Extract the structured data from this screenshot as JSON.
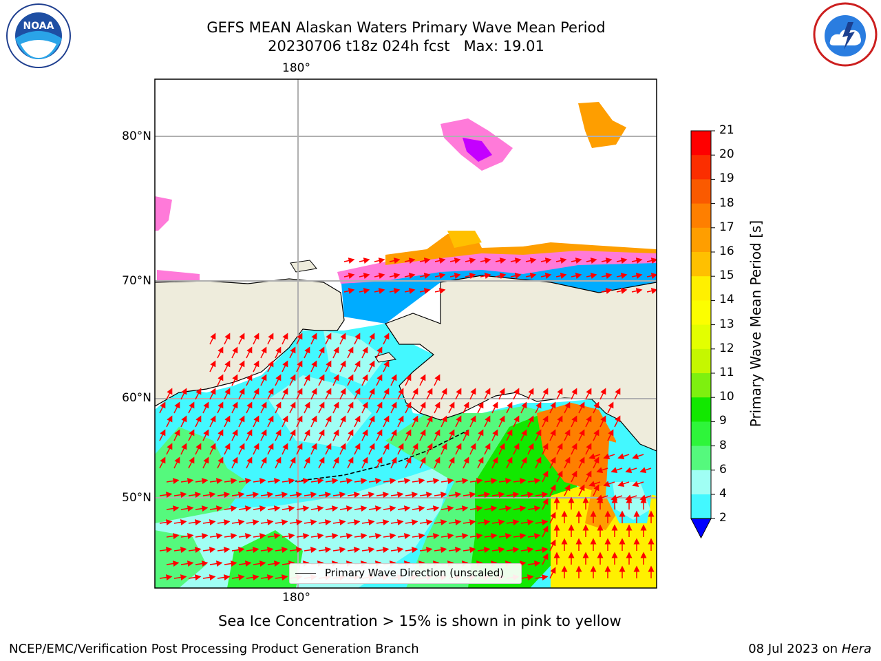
{
  "header": {
    "title_line1": "GEFS MEAN Alaskan Waters Primary Wave Mean Period",
    "title_line2": "20230706 t18z 024h fcst   Max: 19.01"
  },
  "logos": {
    "left": "NOAA",
    "right": "NATIONAL WEATHER SERVICE"
  },
  "map": {
    "lon_label_top": "180°",
    "lon_label_bottom": "180°",
    "lat_labels": [
      "80°N",
      "70°N",
      "60°N",
      "50°N"
    ],
    "legend_label": "Primary Wave Direction (unscaled)",
    "arrow_color": "#ff0000",
    "land_color": "#eeecdc"
  },
  "colorbar": {
    "label": "Primary Wave Mean Period [s]",
    "ticks": [
      "21",
      "20",
      "19",
      "18",
      "17",
      "16",
      "15",
      "14",
      "13",
      "12",
      "11",
      "10",
      "9",
      "8",
      "6",
      "4",
      "2"
    ],
    "colors": [
      "#fe0000",
      "#fb2e00",
      "#fa5a00",
      "#fe7f00",
      "#fe9e00",
      "#ffc000",
      "#fff000",
      "#fcfe00",
      "#e3ff00",
      "#c5f700",
      "#7ef00f",
      "#12e800",
      "#2ef53a",
      "#55f97d",
      "#a0fef4",
      "#43f8ff",
      "#00f1f6",
      "#00acff",
      "#0000ff"
    ]
  },
  "caption": "Sea Ice Concentration > 15% is shown in pink to yellow",
  "footer": {
    "left": "NCEP/EMC/Verification Post Processing Product Generation Branch",
    "date": "08 Jul 2023 on",
    "machine": "Hera"
  }
}
